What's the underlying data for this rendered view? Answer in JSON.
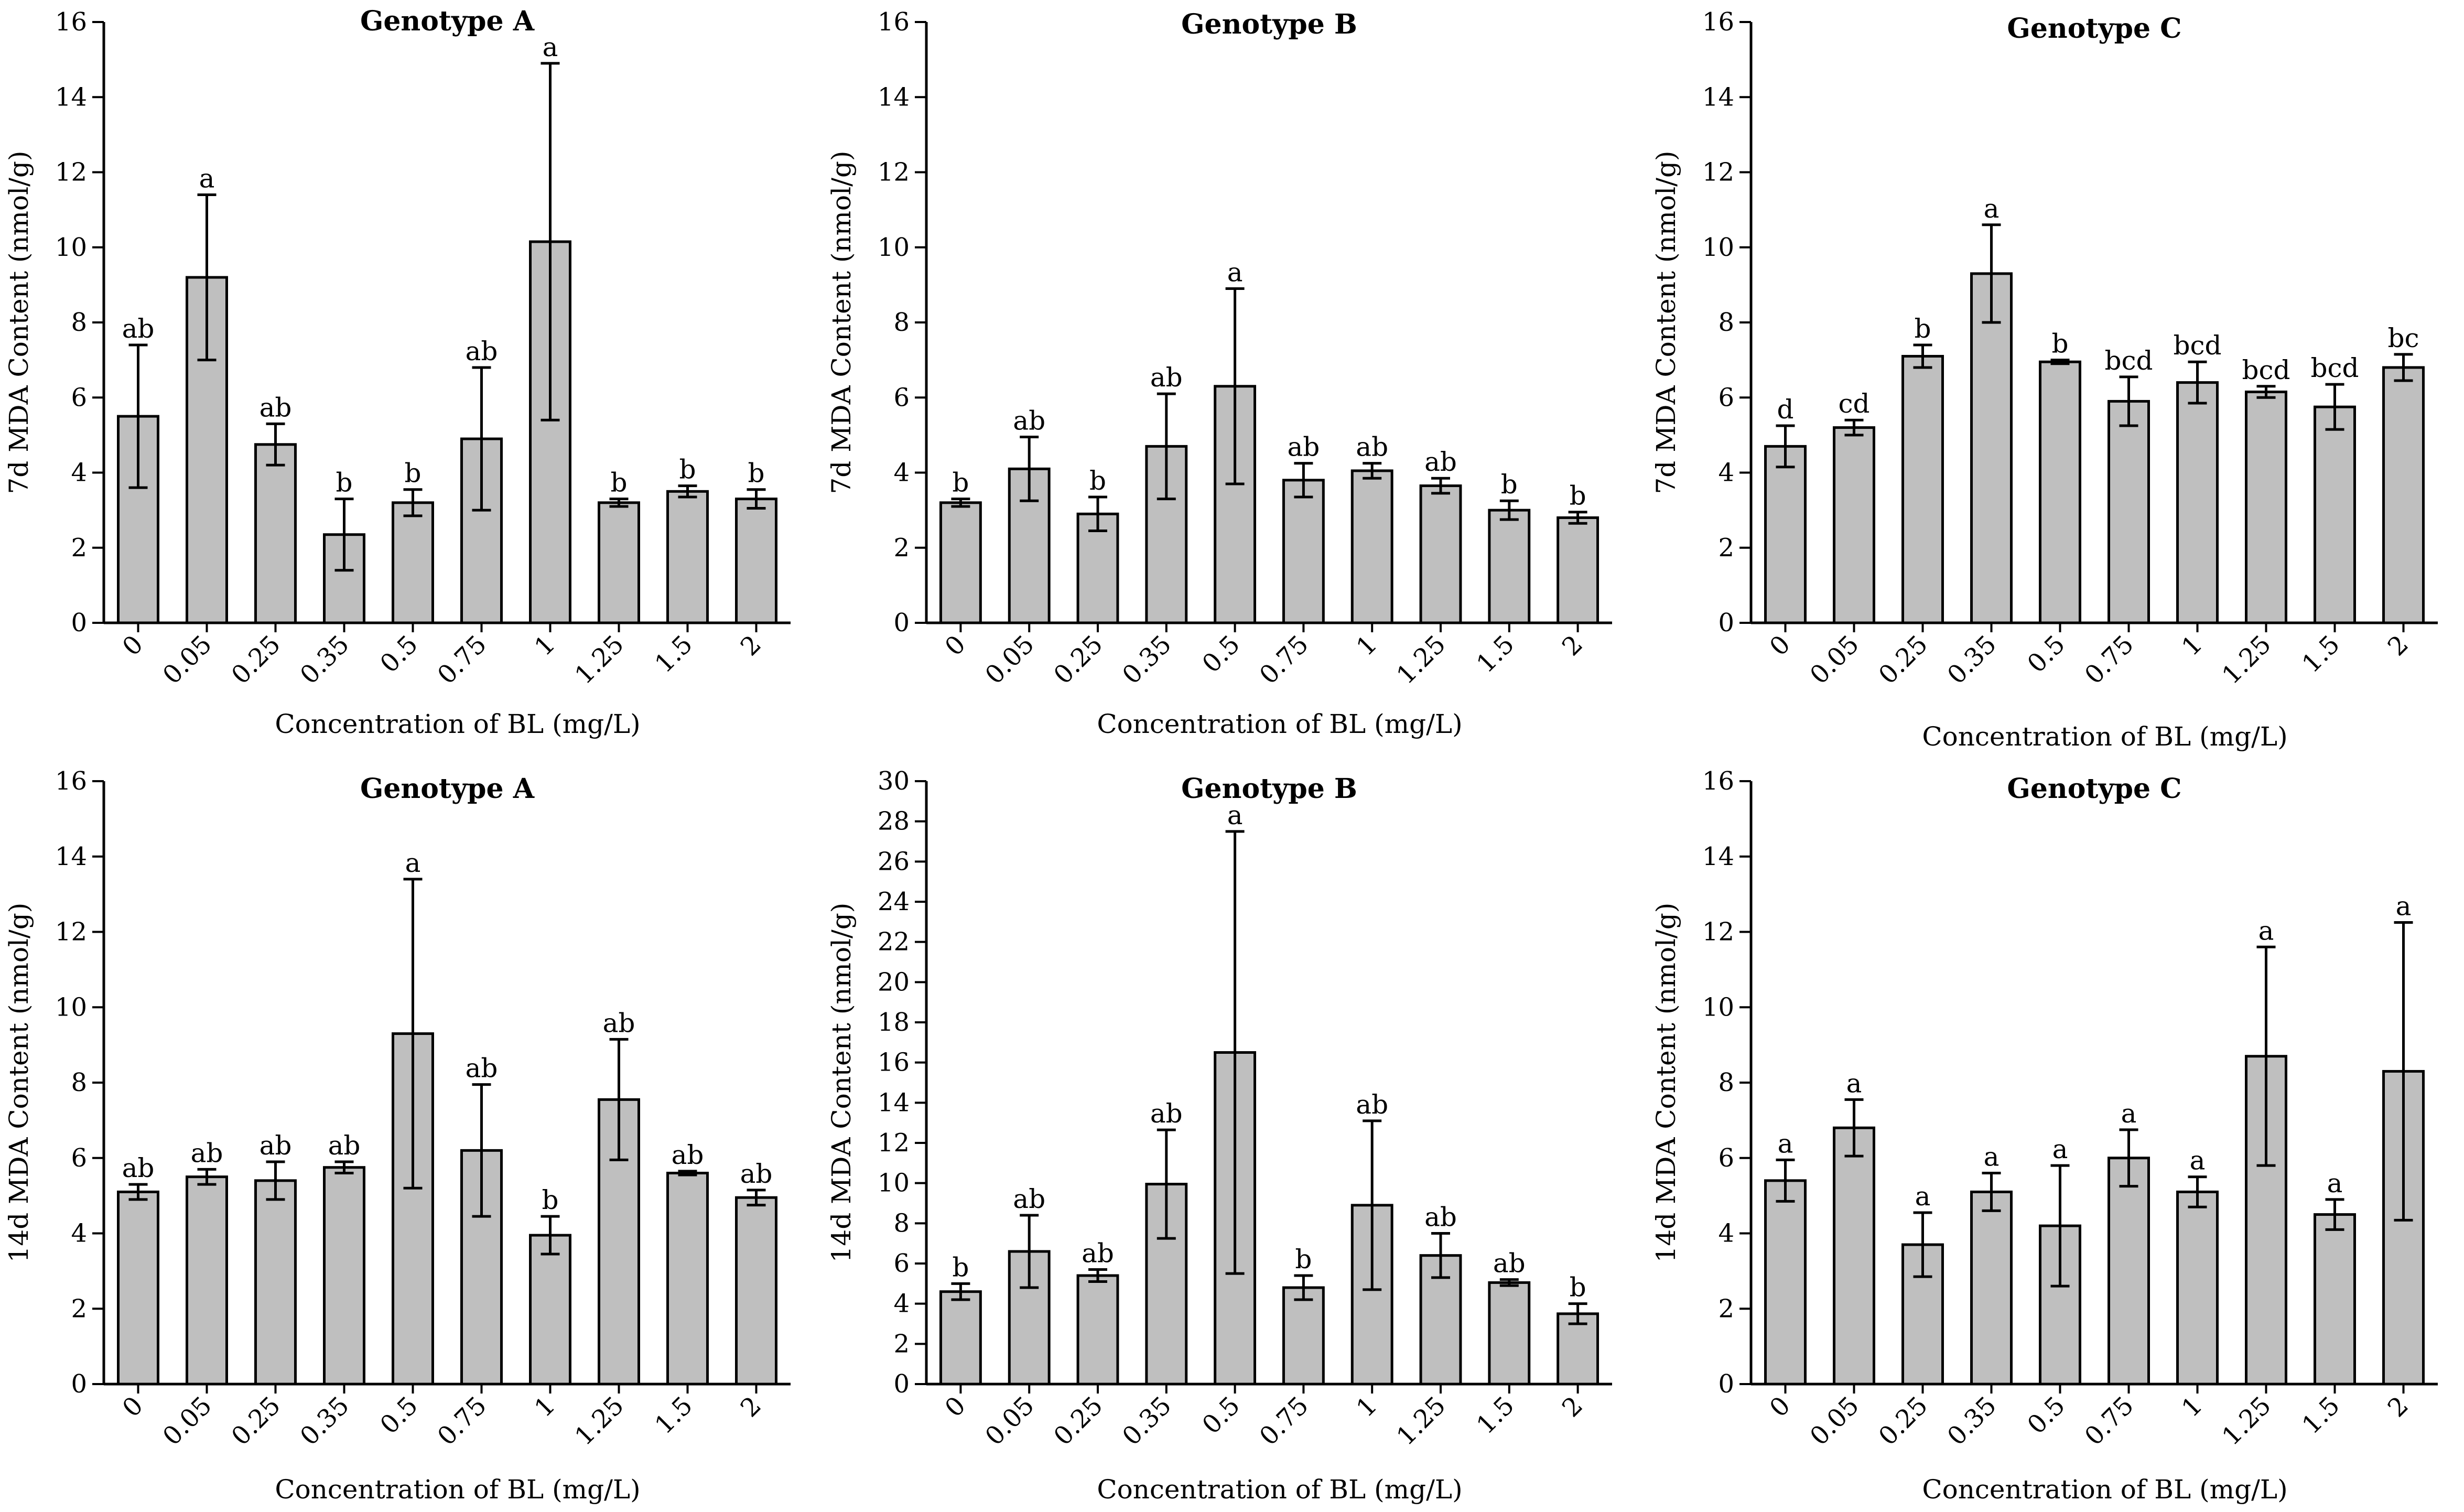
{
  "colors": {
    "bar_fill": "#bfbfbf",
    "stroke": "#000000"
  },
  "chart_data": [
    {
      "type": "bar",
      "title": "Genotype A",
      "ylabel": "7d MDA Content (nmol/g)",
      "xlabel": "Concentration of BL (mg/L)",
      "categories": [
        "0",
        "0.05",
        "0.25",
        "0.35",
        "0.5",
        "0.75",
        "1",
        "1.25",
        "1.5",
        "2"
      ],
      "values": [
        5.5,
        9.2,
        4.75,
        2.35,
        3.2,
        4.9,
        10.15,
        3.2,
        3.5,
        3.3
      ],
      "errors": [
        1.9,
        2.2,
        0.55,
        0.95,
        0.35,
        1.9,
        4.75,
        0.1,
        0.15,
        0.25
      ],
      "labels": [
        "ab",
        "a",
        "ab",
        "b",
        "b",
        "ab",
        "a",
        "b",
        "b",
        "b"
      ],
      "ylim": [
        0,
        16
      ],
      "yticks": [
        0,
        2,
        4,
        6,
        8,
        10,
        12,
        14,
        16
      ]
    },
    {
      "type": "bar",
      "title": "Genotype B",
      "ylabel": "7d MDA Content (nmol/g)",
      "xlabel": "Concentration of BL (mg/L)",
      "categories": [
        "0",
        "0.05",
        "0.25",
        "0.35",
        "0.5",
        "0.75",
        "1",
        "1.25",
        "1.5",
        "2"
      ],
      "values": [
        3.2,
        4.1,
        2.9,
        4.7,
        6.3,
        3.8,
        4.05,
        3.65,
        3.0,
        2.8
      ],
      "errors": [
        0.1,
        0.85,
        0.45,
        1.4,
        2.6,
        0.45,
        0.2,
        0.2,
        0.25,
        0.15
      ],
      "labels": [
        "b",
        "ab",
        "b",
        "ab",
        "a",
        "ab",
        "ab",
        "ab",
        "b",
        "b"
      ],
      "ylim": [
        0,
        16
      ],
      "yticks": [
        0,
        2,
        4,
        6,
        8,
        10,
        12,
        14,
        16
      ]
    },
    {
      "type": "bar",
      "title": "Genotype C",
      "ylabel": "7d MDA Content (nmol/g)",
      "xlabel": "Concentration of BL (mg/L)",
      "categories": [
        "0",
        "0.05",
        "0.25",
        "0.35",
        "0.5",
        "0.75",
        "1",
        "1.25",
        "1.5",
        "2"
      ],
      "values": [
        4.7,
        5.2,
        7.1,
        9.3,
        6.95,
        5.9,
        6.4,
        6.15,
        5.75,
        6.8
      ],
      "errors": [
        0.55,
        0.2,
        0.3,
        1.3,
        0.05,
        0.65,
        0.55,
        0.15,
        0.6,
        0.35
      ],
      "labels": [
        "d",
        "cd",
        "b",
        "a",
        "b",
        "bcd",
        "bcd",
        "bcd",
        "bcd",
        "bc"
      ],
      "ylim": [
        0,
        16
      ],
      "yticks": [
        0,
        2,
        4,
        6,
        8,
        10,
        12,
        14,
        16
      ]
    },
    {
      "type": "bar",
      "title": "Genotype A",
      "ylabel": "14d MDA Content (nmol/g)",
      "xlabel": "Concentration of BL (mg/L)",
      "categories": [
        "0",
        "0.05",
        "0.25",
        "0.35",
        "0.5",
        "0.75",
        "1",
        "1.25",
        "1.5",
        "2"
      ],
      "values": [
        5.1,
        5.5,
        5.4,
        5.75,
        9.3,
        6.2,
        3.95,
        7.55,
        5.6,
        4.95
      ],
      "errors": [
        0.2,
        0.2,
        0.5,
        0.15,
        4.1,
        1.75,
        0.5,
        1.6,
        0.05,
        0.2
      ],
      "labels": [
        "ab",
        "ab",
        "ab",
        "ab",
        "a",
        "ab",
        "b",
        "ab",
        "ab",
        "ab"
      ],
      "ylim": [
        0,
        16
      ],
      "yticks": [
        0,
        2,
        4,
        6,
        8,
        10,
        12,
        14,
        16
      ]
    },
    {
      "type": "bar",
      "title": "Genotype B",
      "ylabel": "14d MDA Content (nmol/g)",
      "xlabel": "Concentration of BL (mg/L)",
      "categories": [
        "0",
        "0.05",
        "0.25",
        "0.35",
        "0.5",
        "0.75",
        "1",
        "1.25",
        "1.5",
        "2"
      ],
      "values": [
        4.6,
        6.6,
        5.4,
        9.95,
        16.5,
        4.8,
        8.9,
        6.4,
        5.05,
        3.5
      ],
      "errors": [
        0.4,
        1.8,
        0.3,
        2.7,
        11.0,
        0.6,
        4.2,
        1.1,
        0.15,
        0.5
      ],
      "labels": [
        "b",
        "ab",
        "ab",
        "ab",
        "a",
        "b",
        "ab",
        "ab",
        "ab",
        "b"
      ],
      "ylim": [
        0,
        30
      ],
      "yticks": [
        0,
        2,
        4,
        6,
        8,
        10,
        12,
        14,
        16,
        18,
        20,
        22,
        24,
        26,
        28,
        30
      ]
    },
    {
      "type": "bar",
      "title": "Genotype C",
      "ylabel": "14d MDA Content (nmol/g)",
      "xlabel": "Concentration of BL (mg/L)",
      "categories": [
        "0",
        "0.05",
        "0.25",
        "0.35",
        "0.5",
        "0.75",
        "1",
        "1.25",
        "1.5",
        "2"
      ],
      "values": [
        5.4,
        6.8,
        3.7,
        5.1,
        4.2,
        6.0,
        5.1,
        8.7,
        4.5,
        8.3
      ],
      "errors": [
        0.55,
        0.75,
        0.85,
        0.5,
        1.6,
        0.75,
        0.4,
        2.9,
        0.4,
        3.95
      ],
      "labels": [
        "a",
        "a",
        "a",
        "a",
        "a",
        "a",
        "a",
        "a",
        "a",
        "a"
      ],
      "ylim": [
        0,
        16
      ],
      "yticks": [
        0,
        2,
        4,
        6,
        8,
        10,
        12,
        14,
        16
      ]
    }
  ]
}
